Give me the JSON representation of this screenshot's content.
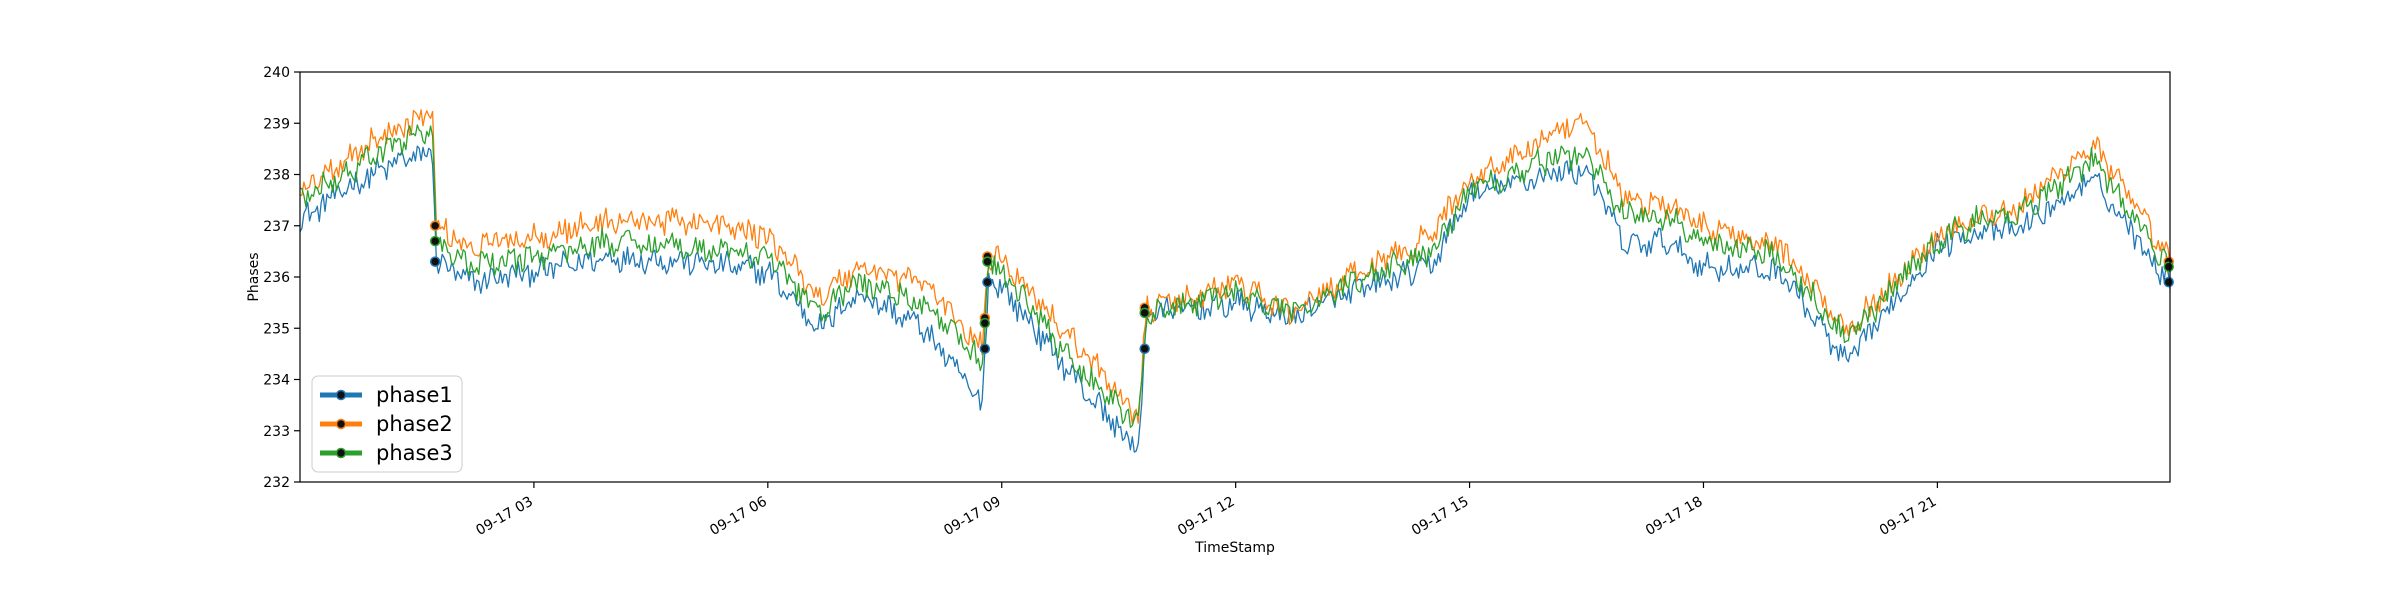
{
  "chart_data": {
    "type": "line",
    "xlabel": "TimeStamp",
    "ylabel": "Phases",
    "xlim": [
      "09-17 00:00",
      "23:59"
    ],
    "ylim": [
      232,
      240
    ],
    "x_ticks": [
      "09-17 03",
      "09-17 06",
      "09-17 09",
      "09-17 12",
      "09-17 15",
      "09-17 18",
      "09-17 21"
    ],
    "y_ticks": [
      "232",
      "233",
      "234",
      "235",
      "236",
      "237",
      "238",
      "239",
      "240"
    ],
    "legend_position": "lower-left",
    "grid": false,
    "series": [
      {
        "name": "phase1",
        "color": "#1f77b4",
        "x": [
          "00:00",
          "00:40",
          "01:20",
          "01:42",
          "01:45",
          "02:10",
          "03:00",
          "04:00",
          "05:00",
          "06:00",
          "06:40",
          "07:10",
          "08:00",
          "08:45",
          "08:50",
          "09:00",
          "10:00",
          "10:45",
          "10:52",
          "11:30",
          "12:00",
          "12:40",
          "13:30",
          "14:30",
          "15:00",
          "16:00",
          "16:30",
          "17:00",
          "17:30",
          "18:00",
          "19:00",
          "19:50",
          "20:20",
          "21:00",
          "21:30",
          "22:00",
          "23:00",
          "23:59"
        ],
        "values": [
          237.1,
          237.8,
          238.3,
          238.4,
          236.3,
          235.9,
          236.1,
          236.4,
          236.3,
          236.1,
          235.0,
          235.7,
          235.0,
          233.5,
          236.0,
          235.8,
          233.9,
          232.6,
          235.3,
          235.4,
          235.5,
          235.2,
          235.7,
          236.2,
          237.6,
          238.0,
          238.1,
          236.6,
          236.7,
          236.2,
          236.1,
          234.3,
          235.3,
          236.6,
          236.9,
          236.9,
          237.9,
          235.9
        ]
      },
      {
        "name": "phase2",
        "color": "#ff7f0e",
        "x": [
          "00:00",
          "00:40",
          "01:20",
          "01:42",
          "01:45",
          "02:10",
          "03:00",
          "04:00",
          "05:00",
          "06:00",
          "06:40",
          "07:10",
          "08:00",
          "08:45",
          "08:50",
          "09:00",
          "10:00",
          "10:45",
          "10:52",
          "11:30",
          "12:00",
          "12:40",
          "13:30",
          "14:30",
          "15:00",
          "16:00",
          "16:30",
          "17:00",
          "17:30",
          "18:00",
          "19:00",
          "19:50",
          "20:20",
          "21:00",
          "21:30",
          "22:00",
          "23:00",
          "23:59"
        ],
        "values": [
          237.7,
          238.4,
          239.0,
          239.2,
          237.0,
          236.6,
          236.8,
          237.1,
          237.1,
          236.8,
          235.6,
          236.2,
          235.9,
          234.6,
          236.4,
          236.4,
          234.6,
          233.3,
          235.4,
          235.6,
          235.9,
          235.3,
          236.0,
          236.8,
          237.9,
          238.7,
          239.0,
          237.5,
          237.4,
          237.0,
          236.6,
          235.0,
          235.7,
          236.8,
          237.2,
          237.3,
          238.6,
          236.3
        ]
      },
      {
        "name": "phase3",
        "color": "#2ca02c",
        "x": [
          "00:00",
          "00:40",
          "01:20",
          "01:42",
          "01:45",
          "02:10",
          "03:00",
          "04:00",
          "05:00",
          "06:00",
          "06:40",
          "07:10",
          "08:00",
          "08:45",
          "08:50",
          "09:00",
          "10:00",
          "10:45",
          "10:52",
          "11:30",
          "12:00",
          "12:40",
          "13:30",
          "14:30",
          "15:00",
          "16:00",
          "16:30",
          "17:00",
          "17:30",
          "18:00",
          "19:00",
          "19:50",
          "20:20",
          "21:00",
          "21:30",
          "22:00",
          "23:00",
          "23:59"
        ],
        "values": [
          237.5,
          238.1,
          238.7,
          238.9,
          236.7,
          236.2,
          236.4,
          236.7,
          236.6,
          236.4,
          235.3,
          235.9,
          235.5,
          234.3,
          236.3,
          236.1,
          234.2,
          233.1,
          235.3,
          235.5,
          235.7,
          235.3,
          235.9,
          236.5,
          237.7,
          238.3,
          238.4,
          237.2,
          237.2,
          236.7,
          236.4,
          234.8,
          235.6,
          236.7,
          237.1,
          237.2,
          238.3,
          236.1
        ]
      }
    ],
    "marker_points": [
      {
        "x": "01:44",
        "values": [
          236.3,
          237.0,
          236.7
        ]
      },
      {
        "x": "08:47",
        "values": [
          234.6,
          235.2,
          235.1
        ]
      },
      {
        "x": "08:49",
        "values": [
          235.9,
          236.4,
          236.3
        ]
      },
      {
        "x": "10:50",
        "values": [
          234.6,
          235.4,
          235.3
        ]
      },
      {
        "x": "23:58",
        "values": [
          235.9,
          236.3,
          236.2
        ]
      }
    ]
  }
}
